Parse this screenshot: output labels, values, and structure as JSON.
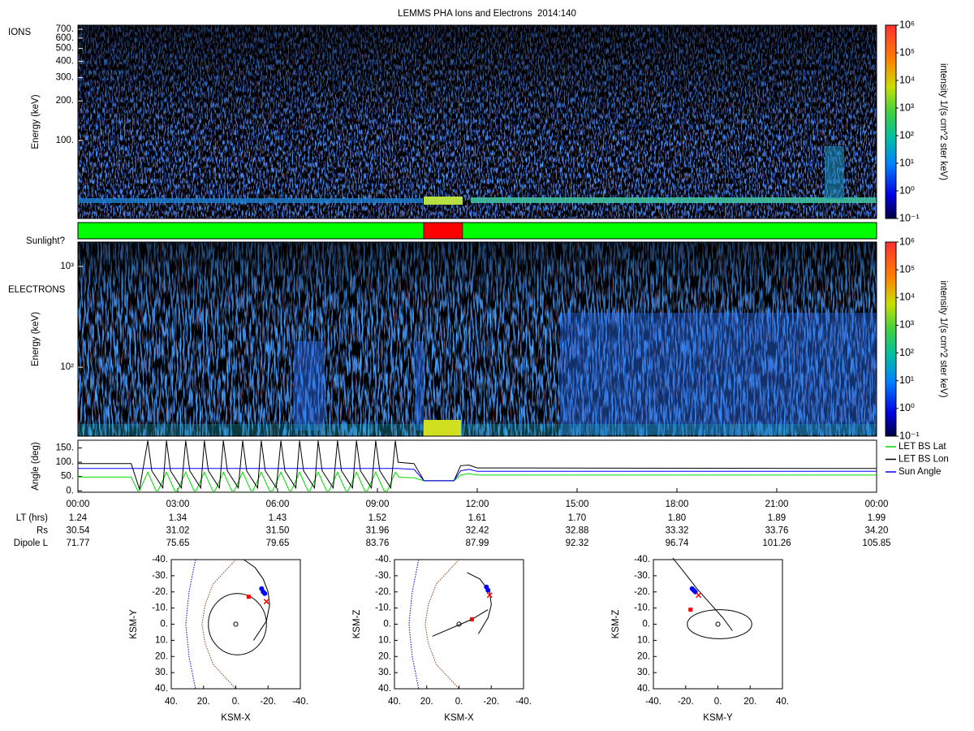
{
  "chart_data": [
    {
      "type": "spectrogram",
      "title": "LEMMS PHA Ions and Electrons  2014:140",
      "label": "IONS",
      "ylabel": "Energy (keV)",
      "log": true,
      "ylim": [
        25.5,
        752
      ],
      "yticks": [
        {
          "value": 100,
          "label": "100."
        },
        {
          "value": 200,
          "label": "200."
        },
        {
          "value": 300,
          "label": "300."
        },
        {
          "value": 400,
          "label": "400."
        },
        {
          "value": 500,
          "label": "500."
        },
        {
          "value": 600,
          "label": "600."
        },
        {
          "value": 700,
          "label": "700."
        }
      ],
      "colorbar": {
        "label": "intensity 1/(s cm^2 ster keV)",
        "lim": [
          0.1,
          1000000
        ],
        "ticks": [
          {
            "value": 0.1,
            "label": "10⁻¹"
          },
          {
            "value": 1,
            "label": "10⁰"
          },
          {
            "value": 10,
            "label": "10¹"
          },
          {
            "value": 100,
            "label": "10²"
          },
          {
            "value": 1000,
            "label": "10³"
          },
          {
            "value": 10000,
            "label": "10⁴"
          },
          {
            "value": 100000,
            "label": "10⁵"
          },
          {
            "value": 1000000,
            "label": "10⁶"
          }
        ]
      }
    },
    {
      "type": "timeline",
      "label": "Sunlight?",
      "xlim": [
        0,
        24
      ],
      "segments": [
        {
          "start": 0,
          "end": 10.39,
          "color": "#00ff00"
        },
        {
          "start": 10.39,
          "end": 11.56,
          "color": "#ff0000"
        },
        {
          "start": 11.56,
          "end": 24,
          "color": "#00ff00"
        }
      ]
    },
    {
      "type": "spectrogram",
      "label": "ELECTRONS",
      "ylabel": "Energy (keV)",
      "log": true,
      "ylim": [
        20.7,
        1746
      ],
      "yticks": [
        {
          "value": 100,
          "label": "10²"
        },
        {
          "value": 1000,
          "label": "10³"
        }
      ],
      "colorbar": {
        "label": "intensity 1/(s cm^2 ster keV)",
        "lim": [
          0.1,
          1000000
        ],
        "ticks": [
          {
            "value": 0.1,
            "label": "10⁻¹"
          },
          {
            "value": 1,
            "label": "10⁰"
          },
          {
            "value": 10,
            "label": "10¹"
          },
          {
            "value": 100,
            "label": "10²"
          },
          {
            "value": 1000,
            "label": "10³"
          },
          {
            "value": 10000,
            "label": "10⁴"
          },
          {
            "value": 100000,
            "label": "10⁵"
          },
          {
            "value": 1000000,
            "label": "10⁶"
          }
        ]
      }
    },
    {
      "type": "line",
      "ylabel": "Angle (deg)",
      "xlim": [
        0,
        24
      ],
      "ylim": [
        -5,
        177
      ],
      "legend": "right",
      "yticks": [
        {
          "value": 0,
          "label": "0."
        },
        {
          "value": 50,
          "label": "50."
        },
        {
          "value": 100,
          "label": "100."
        },
        {
          "value": 150,
          "label": "150."
        }
      ],
      "xticks": [
        {
          "value": 0,
          "label": "00:00"
        },
        {
          "value": 3,
          "label": "03:00"
        },
        {
          "value": 6,
          "label": "06:00"
        },
        {
          "value": 9,
          "label": "09:00"
        },
        {
          "value": 12,
          "label": "12:00"
        },
        {
          "value": 15,
          "label": "15:00"
        },
        {
          "value": 18,
          "label": "18:00"
        },
        {
          "value": 21,
          "label": "21:00"
        },
        {
          "value": 24,
          "label": "00:00"
        }
      ],
      "series": [
        {
          "name": "LET BS Lat",
          "color": "#00dd00",
          "x": [
            0,
            1.6,
            1.8,
            1.85,
            2.1,
            2.35,
            2.41,
            2.66,
            2.91,
            2.99,
            3.24,
            3.49,
            3.55,
            3.8,
            4.05,
            4.12,
            4.37,
            4.62,
            4.7,
            4.95,
            5.2,
            5.26,
            5.51,
            5.76,
            5.85,
            6.1,
            6.35,
            6.41,
            6.66,
            6.91,
            6.97,
            7.22,
            7.47,
            7.55,
            7.8,
            8.05,
            8.12,
            8.37,
            8.62,
            8.7,
            8.95,
            9.2,
            9.3,
            9.54,
            9.65,
            10.1,
            10.4,
            11.3,
            11.5,
            11.75,
            12,
            24
          ],
          "values": [
            48,
            48,
            0,
            0,
            65,
            0,
            0,
            65,
            0,
            0,
            65,
            0,
            0,
            65,
            0,
            0,
            65,
            0,
            0,
            65,
            0,
            0,
            65,
            0,
            0,
            65,
            0,
            0,
            65,
            0,
            0,
            65,
            0,
            0,
            65,
            0,
            0,
            65,
            0,
            0,
            65,
            0,
            0,
            65,
            48,
            45,
            35,
            35,
            55,
            60,
            55,
            55
          ]
        },
        {
          "name": "LET BS Lon",
          "color": "#000000",
          "x": [
            0,
            1.6,
            1.85,
            2.1,
            2.22,
            2.55,
            2.66,
            2.78,
            3.11,
            3.24,
            3.36,
            3.69,
            3.8,
            3.92,
            4.25,
            4.37,
            4.49,
            4.82,
            4.95,
            5.07,
            5.4,
            5.51,
            5.63,
            5.96,
            6.1,
            6.22,
            6.55,
            6.66,
            6.78,
            7.11,
            7.22,
            7.34,
            7.67,
            7.8,
            7.92,
            8.25,
            8.37,
            8.49,
            8.82,
            8.95,
            9.07,
            9.4,
            9.54,
            9.62,
            10.1,
            10.4,
            11.3,
            11.5,
            11.75,
            12,
            24
          ],
          "values": [
            95,
            95,
            5,
            175,
            70,
            10,
            175,
            70,
            10,
            175,
            70,
            10,
            175,
            70,
            10,
            175,
            70,
            10,
            175,
            70,
            10,
            175,
            70,
            10,
            175,
            70,
            10,
            175,
            70,
            10,
            175,
            70,
            10,
            175,
            70,
            10,
            175,
            70,
            10,
            175,
            70,
            10,
            175,
            100,
            95,
            35,
            35,
            88,
            90,
            80,
            78
          ]
        },
        {
          "name": "Sun Angle",
          "color": "#0000ff",
          "x": [
            0,
            9.6,
            10.1,
            10.4,
            11.3,
            11.5,
            11.75,
            12,
            24
          ],
          "values": [
            78,
            78,
            75,
            35,
            35,
            70,
            75,
            68,
            68
          ]
        }
      ],
      "ephemeris": [
        {
          "label": "LT (hrs)",
          "values": [
            "1.24",
            "1.34",
            "1.43",
            "1.52",
            "1.61",
            "1.70",
            "1.80",
            "1.89",
            "1.99"
          ]
        },
        {
          "label": "Rs",
          "values": [
            "30.54",
            "31.02",
            "31.50",
            "31.96",
            "32.42",
            "32.88",
            "33.32",
            "33.76",
            "34.20"
          ]
        },
        {
          "label": "Dipole L",
          "values": [
            "71.77",
            "75.65",
            "79.65",
            "83.76",
            "87.99",
            "92.32",
            "96.74",
            "101.26",
            "105.85"
          ]
        }
      ]
    },
    {
      "type": "orbit",
      "xlabel": "KSM-X",
      "ylabel": "KSM-Y",
      "xlim": [
        40,
        -40
      ],
      "ylim": [
        -40,
        40
      ],
      "xticks": [
        {
          "value": 40,
          "label": "40."
        },
        {
          "value": 20,
          "label": "20."
        },
        {
          "value": 0,
          "label": "0."
        },
        {
          "value": -20,
          "label": "-20."
        },
        {
          "value": -40,
          "label": "-40."
        }
      ],
      "yticks": [
        {
          "value": -40,
          "label": "-40."
        },
        {
          "value": -30,
          "label": "-30."
        },
        {
          "value": -20,
          "label": "-20."
        },
        {
          "value": -10,
          "label": "-10."
        },
        {
          "value": 0,
          "label": "0."
        },
        {
          "value": 10,
          "label": "10."
        },
        {
          "value": 20,
          "label": "20."
        },
        {
          "value": 30,
          "label": "30."
        },
        {
          "value": 40,
          "label": "40."
        }
      ],
      "curves": [
        {
          "color": "#0000cc",
          "dash": true,
          "x": [
            25,
            29,
            31,
            29,
            25
          ],
          "y": [
            -40,
            -20,
            0,
            20,
            40
          ]
        },
        {
          "color": "#8b3a0f",
          "dash": true,
          "x": [
            0,
            14,
            19,
            21,
            19,
            14,
            0
          ],
          "y": [
            -40,
            -25,
            -12,
            0,
            12,
            25,
            40
          ]
        },
        {
          "color": "#000000",
          "dash": false,
          "x": [
            -5,
            -12,
            -17,
            -20,
            -21,
            -19,
            -11
          ],
          "y": [
            -40,
            -35,
            -28,
            -20,
            -12,
            -2,
            10
          ]
        }
      ],
      "ellipses": [
        {
          "x": -1,
          "y": 0,
          "rx": 18,
          "ry": 19
        },
        {
          "x": 0,
          "y": 0,
          "rx": 1.3,
          "ry": 1.3
        }
      ],
      "markers": [
        {
          "x": -8,
          "y": -17,
          "color": "#ff0000",
          "shape": "square"
        },
        {
          "x": -16,
          "y": -22,
          "color": "#0000ff",
          "shape": "dot"
        },
        {
          "x": -17,
          "y": -20,
          "color": "#0000ff",
          "shape": "dot"
        },
        {
          "x": -18,
          "y": -19,
          "color": "#0000ff",
          "shape": "dot"
        },
        {
          "x": -19,
          "y": -14,
          "color": "#ff0000",
          "shape": "x"
        }
      ]
    },
    {
      "type": "orbit",
      "xlabel": "KSM-X",
      "ylabel": "KSM-Z",
      "xlim": [
        40,
        -40
      ],
      "ylim": [
        -40,
        40
      ],
      "xticks": [
        {
          "value": 40,
          "label": "40."
        },
        {
          "value": 20,
          "label": "20."
        },
        {
          "value": 0,
          "label": "0."
        },
        {
          "value": -20,
          "label": "-20."
        },
        {
          "value": -40,
          "label": "-40."
        }
      ],
      "yticks": [
        {
          "value": -40,
          "label": "-40."
        },
        {
          "value": -30,
          "label": "-30."
        },
        {
          "value": -20,
          "label": "-20."
        },
        {
          "value": -10,
          "label": "-10."
        },
        {
          "value": 0,
          "label": "0."
        },
        {
          "value": 10,
          "label": "10."
        },
        {
          "value": 20,
          "label": "20."
        },
        {
          "value": 30,
          "label": "30."
        },
        {
          "value": 40,
          "label": "40."
        }
      ],
      "curves": [
        {
          "color": "#0000cc",
          "dash": true,
          "x": [
            25,
            29,
            31,
            29,
            25
          ],
          "y": [
            -40,
            -20,
            0,
            20,
            40
          ]
        },
        {
          "color": "#8b3a0f",
          "dash": true,
          "x": [
            0,
            14,
            19,
            21,
            19,
            14,
            0
          ],
          "y": [
            -40,
            -25,
            -12,
            0,
            12,
            25,
            40
          ]
        },
        {
          "color": "#000000",
          "dash": false,
          "x": [
            16.5,
            -8,
            -18
          ],
          "y": [
            7.5,
            -3,
            -9
          ]
        },
        {
          "color": "#000000",
          "dash": false,
          "x": [
            -5,
            -13,
            -19,
            -20,
            -18,
            -12
          ],
          "y": [
            -32,
            -28,
            -20,
            -12,
            -4,
            6
          ]
        }
      ],
      "ellipses": [
        {
          "x": 0,
          "y": 0,
          "rx": 1.3,
          "ry": 1.3
        }
      ],
      "markers": [
        {
          "x": -8,
          "y": -3,
          "color": "#ff0000",
          "shape": "square"
        },
        {
          "x": -17,
          "y": -23,
          "color": "#0000ff",
          "shape": "dot"
        },
        {
          "x": -18,
          "y": -21,
          "color": "#0000ff",
          "shape": "dot"
        },
        {
          "x": -19,
          "y": -18,
          "color": "#ff0000",
          "shape": "x"
        }
      ]
    },
    {
      "type": "orbit",
      "xlabel": "KSM-Y",
      "ylabel": "KSM-Z",
      "xlim": [
        -40,
        40
      ],
      "ylim": [
        -40,
        40
      ],
      "xticks": [
        {
          "value": -40,
          "label": "-40."
        },
        {
          "value": -20,
          "label": "-20."
        },
        {
          "value": 0,
          "label": "0."
        },
        {
          "value": 20,
          "label": "20."
        },
        {
          "value": 40,
          "label": "40."
        }
      ],
      "yticks": [
        {
          "value": -40,
          "label": "-40."
        },
        {
          "value": -30,
          "label": "-30."
        },
        {
          "value": -20,
          "label": "-20."
        },
        {
          "value": -10,
          "label": "-10."
        },
        {
          "value": 0,
          "label": "0."
        },
        {
          "value": 10,
          "label": "10."
        },
        {
          "value": 20,
          "label": "20."
        },
        {
          "value": 30,
          "label": "30."
        },
        {
          "value": 40,
          "label": "40."
        }
      ],
      "curves": [
        {
          "color": "#000000",
          "dash": false,
          "x": [
            -28,
            -20,
            -13,
            -5,
            3,
            9
          ],
          "y": [
            -41,
            -31,
            -22,
            -13,
            -4,
            4
          ]
        }
      ],
      "ellipses": [
        {
          "x": 1,
          "y": 0,
          "rx": 20,
          "ry": 9
        },
        {
          "x": 0,
          "y": 0,
          "rx": 1.3,
          "ry": 1.3
        }
      ],
      "markers": [
        {
          "x": -17,
          "y": -9,
          "color": "#ff0000",
          "shape": "square"
        },
        {
          "x": -15,
          "y": -21,
          "color": "#0000ff",
          "shape": "dot"
        },
        {
          "x": -14,
          "y": -20,
          "color": "#0000ff",
          "shape": "dot"
        },
        {
          "x": -16,
          "y": -22,
          "color": "#0000ff",
          "shape": "dot"
        },
        {
          "x": -12,
          "y": -18,
          "color": "#ff0000",
          "shape": "x"
        }
      ]
    }
  ]
}
